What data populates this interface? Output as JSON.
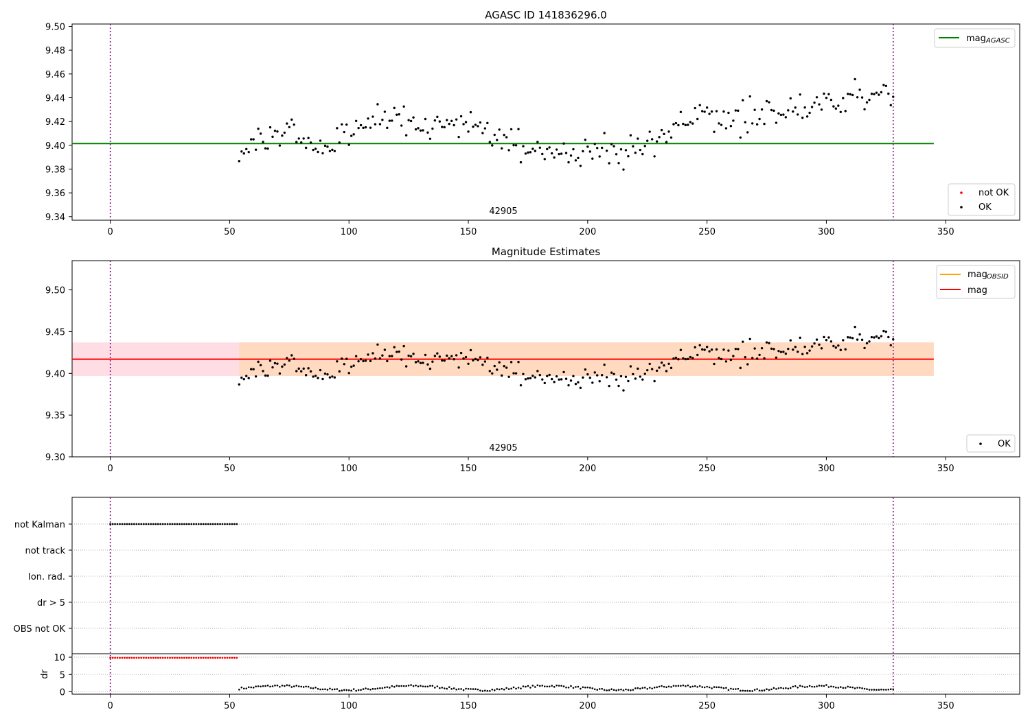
{
  "chart_data": [
    {
      "type": "scatter",
      "title": "AGASC ID 141836296.0",
      "xlim": [
        -16,
        381
      ],
      "ylim": [
        9.337,
        9.502
      ],
      "x_ticks": [
        0,
        50,
        100,
        150,
        200,
        250,
        300,
        350
      ],
      "y_ticks": [
        9.34,
        9.36,
        9.38,
        9.4,
        9.42,
        9.44,
        9.46,
        9.48,
        9.5
      ],
      "y_tick_labels": [
        "9.34",
        "9.36",
        "9.38",
        "9.40",
        "9.42",
        "9.44",
        "9.46",
        "9.48",
        "9.50"
      ],
      "vlines": [
        0,
        328
      ],
      "obsid_label": "42905",
      "obsid_x": 164,
      "hline": {
        "name": "mag_AGASC",
        "value": 9.4015,
        "xmin": -16,
        "xmax": 345,
        "color": "#008000"
      },
      "legend_lines": [
        {
          "label": "mag",
          "sub": "AGASC",
          "color": "#008000"
        }
      ],
      "legend_points": [
        {
          "label": "not OK",
          "color": "#ff0000"
        },
        {
          "label": "OK",
          "color": "#000000"
        }
      ],
      "series": [
        {
          "name": "OK",
          "color": "#000000",
          "points_ref": "shared_mag_points"
        }
      ]
    },
    {
      "type": "scatter",
      "title": "Magnitude Estimates",
      "xlim": [
        -16,
        381
      ],
      "ylim": [
        9.3,
        9.535
      ],
      "x_ticks": [
        0,
        50,
        100,
        150,
        200,
        250,
        300,
        350
      ],
      "y_ticks": [
        9.3,
        9.35,
        9.4,
        9.45,
        9.5
      ],
      "y_tick_labels": [
        "9.30",
        "9.35",
        "9.40",
        "9.45",
        "9.50"
      ],
      "vlines": [
        0,
        328
      ],
      "obsid_label": "42905",
      "obsid_x": 164,
      "mag_line": {
        "value": 9.417,
        "color": "#ff0000"
      },
      "band_full": {
        "low": 9.397,
        "high": 9.437,
        "xmin": -16,
        "xmax": 345,
        "color": "#ffdde4"
      },
      "band_obsid": {
        "low": 9.397,
        "high": 9.437,
        "xmin": 54,
        "xmax": 345,
        "color": "#ffd9c0"
      },
      "legend_lines": [
        {
          "label": "mag",
          "sub": "OBSID",
          "color": "#ffa500"
        },
        {
          "label": "mag",
          "sub": "",
          "color": "#ff0000"
        }
      ],
      "legend_points": [
        {
          "label": "OK",
          "color": "#000000"
        }
      ],
      "series": [
        {
          "name": "OK",
          "color": "#000000",
          "points_ref": "shared_mag_points"
        }
      ]
    },
    {
      "type": "scatter",
      "xlim": [
        -16,
        381
      ],
      "x_ticks": [
        0,
        50,
        100,
        150,
        200,
        250,
        300,
        350
      ],
      "vlines": [
        0,
        328
      ],
      "flag_rows": [
        "not Kalman",
        "not track",
        "Ion. rad.",
        "dr > 5",
        "OBS not OK"
      ],
      "flag_points": {
        "row": "not Kalman",
        "x_from": 0,
        "x_to": 53,
        "step": 1
      },
      "dr": {
        "y_ticks": [
          0,
          5,
          10
        ],
        "y_tick_labels": [
          "0",
          "5",
          "10"
        ],
        "ylabel": "dr",
        "ylim": [
          -0.5,
          10.8
        ],
        "high_points": {
          "x_from": 0,
          "x_to": 53,
          "y": 9.8,
          "color": "#ff0000"
        }
      }
    }
  ]
}
